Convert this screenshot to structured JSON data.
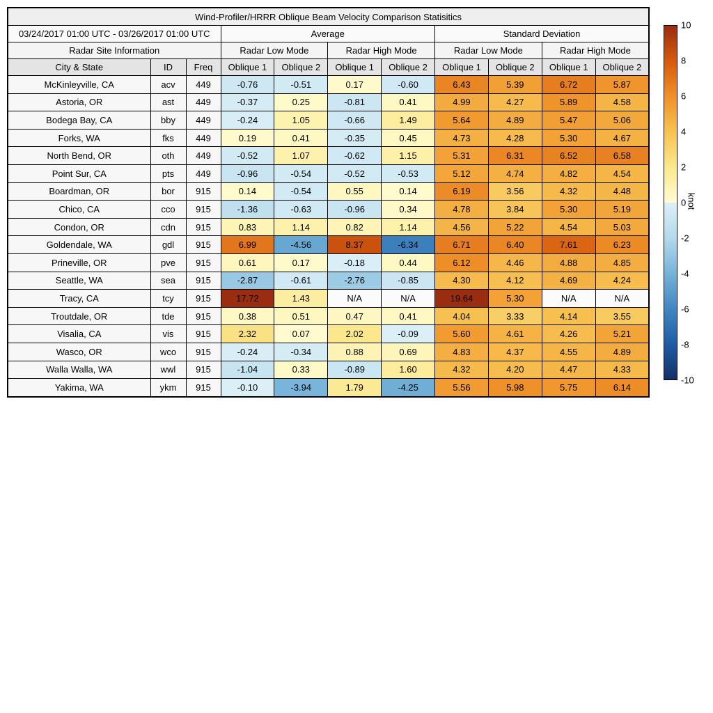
{
  "title": "Wind-Profiler/HRRR Oblique Beam Velocity Comparison Statisitics",
  "table": {
    "date_range": "03/24/2017 01:00 UTC - 03/26/2017 01:00 UTC",
    "average_label": "Average",
    "std_label": "Standard Deviation",
    "site_info_label": "Radar Site Information",
    "mode_labels": [
      "Radar Low Mode",
      "Radar High Mode",
      "Radar Low Mode",
      "Radar High Mode"
    ],
    "column_labels": [
      "City & State",
      "ID",
      "Freq",
      "Oblique 1",
      "Oblique 2",
      "Oblique 1",
      "Oblique 2",
      "Oblique 1",
      "Oblique 2",
      "Oblique 1",
      "Oblique 2"
    ]
  },
  "colorbar": {
    "label": "knot",
    "min": -10,
    "max": 10,
    "ticks": [
      10,
      8,
      6,
      4,
      2,
      0,
      -2,
      -4,
      -6,
      -8,
      -10
    ],
    "negative_stops": [
      [
        -10,
        "#123068"
      ],
      [
        -8,
        "#1e5ca4"
      ],
      [
        -6,
        "#4187c1"
      ],
      [
        -4,
        "#77b3d9"
      ],
      [
        -2,
        "#b3d9ec"
      ],
      [
        0,
        "#ddf0f7"
      ]
    ],
    "positive_stops": [
      [
        0,
        "#fffcd1"
      ],
      [
        2,
        "#fbe88e"
      ],
      [
        4,
        "#f7c252"
      ],
      [
        6,
        "#ef9129"
      ],
      [
        8,
        "#d55a0e"
      ],
      [
        10,
        "#9a2d0f"
      ]
    ],
    "na_color": "#fbfbfb"
  },
  "chart_data": {
    "type": "heatmap",
    "title": "Wind-Profiler/HRRR Oblique Beam Velocity Comparison Statisitics",
    "subtitle": "03/24/2017 01:00 UTC - 03/26/2017 01:00 UTC",
    "unit": "knot",
    "color_range": [
      -10,
      10
    ],
    "column_groups": [
      "Average / Radar Low Mode",
      "Average / Radar High Mode",
      "Standard Deviation / Radar Low Mode",
      "Standard Deviation / Radar High Mode"
    ],
    "value_columns": [
      "Oblique 1",
      "Oblique 2",
      "Oblique 1",
      "Oblique 2",
      "Oblique 1",
      "Oblique 2",
      "Oblique 1",
      "Oblique 2"
    ],
    "rows": [
      {
        "city": "McKinleyville, CA",
        "id": "acv",
        "freq": "449",
        "values": [
          "-0.76",
          "-0.51",
          "0.17",
          "-0.60",
          "6.43",
          "5.39",
          "6.72",
          "5.87"
        ]
      },
      {
        "city": "Astoria, OR",
        "id": "ast",
        "freq": "449",
        "values": [
          "-0.37",
          "0.25",
          "-0.81",
          "0.41",
          "4.99",
          "4.27",
          "5.89",
          "4.58"
        ]
      },
      {
        "city": "Bodega Bay, CA",
        "id": "bby",
        "freq": "449",
        "values": [
          "-0.24",
          "1.05",
          "-0.66",
          "1.49",
          "5.64",
          "4.89",
          "5.47",
          "5.06"
        ]
      },
      {
        "city": "Forks, WA",
        "id": "fks",
        "freq": "449",
        "values": [
          "0.19",
          "0.41",
          "-0.35",
          "0.45",
          "4.73",
          "4.28",
          "5.30",
          "4.67"
        ]
      },
      {
        "city": "North Bend, OR",
        "id": "oth",
        "freq": "449",
        "values": [
          "-0.52",
          "1.07",
          "-0.62",
          "1.15",
          "5.31",
          "6.31",
          "6.52",
          "6.58"
        ]
      },
      {
        "city": "Point Sur, CA",
        "id": "pts",
        "freq": "449",
        "values": [
          "-0.96",
          "-0.54",
          "-0.52",
          "-0.53",
          "5.12",
          "4.74",
          "4.82",
          "4.54"
        ]
      },
      {
        "city": "Boardman, OR",
        "id": "bor",
        "freq": "915",
        "values": [
          "0.14",
          "-0.54",
          "0.55",
          "0.14",
          "6.19",
          "3.56",
          "4.32",
          "4.48"
        ]
      },
      {
        "city": "Chico, CA",
        "id": "cco",
        "freq": "915",
        "values": [
          "-1.36",
          "-0.63",
          "-0.96",
          "0.34",
          "4.78",
          "3.84",
          "5.30",
          "5.19"
        ]
      },
      {
        "city": "Condon, OR",
        "id": "cdn",
        "freq": "915",
        "values": [
          "0.83",
          "1.14",
          "0.82",
          "1.14",
          "4.56",
          "5.22",
          "4.54",
          "5.03"
        ]
      },
      {
        "city": "Goldendale, WA",
        "id": "gdl",
        "freq": "915",
        "values": [
          "6.99",
          "-4.56",
          "8.37",
          "-6.34",
          "6.71",
          "6.40",
          "7.61",
          "6.23"
        ]
      },
      {
        "city": "Prineville, OR",
        "id": "pve",
        "freq": "915",
        "values": [
          "0.61",
          "0.17",
          "-0.18",
          "0.44",
          "6.12",
          "4.46",
          "4.88",
          "4.85"
        ]
      },
      {
        "city": "Seattle, WA",
        "id": "sea",
        "freq": "915",
        "values": [
          "-2.87",
          "-0.61",
          "-2.76",
          "-0.85",
          "4.30",
          "4.12",
          "4.69",
          "4.24"
        ]
      },
      {
        "city": "Tracy, CA",
        "id": "tcy",
        "freq": "915",
        "values": [
          "17.72",
          "1.43",
          "N/A",
          "N/A",
          "19.64",
          "5.30",
          "N/A",
          "N/A"
        ]
      },
      {
        "city": "Troutdale, OR",
        "id": "tde",
        "freq": "915",
        "values": [
          "0.38",
          "0.51",
          "0.47",
          "0.41",
          "4.04",
          "3.33",
          "4.14",
          "3.55"
        ]
      },
      {
        "city": "Visalia, CA",
        "id": "vis",
        "freq": "915",
        "values": [
          "2.32",
          "0.07",
          "2.02",
          "-0.09",
          "5.60",
          "4.61",
          "4.26",
          "5.21"
        ]
      },
      {
        "city": "Wasco, OR",
        "id": "wco",
        "freq": "915",
        "values": [
          "-0.24",
          "-0.34",
          "0.88",
          "0.69",
          "4.83",
          "4.37",
          "4.55",
          "4.89"
        ]
      },
      {
        "city": "Walla Walla, WA",
        "id": "wwl",
        "freq": "915",
        "values": [
          "-1.04",
          "0.33",
          "-0.89",
          "1.60",
          "4.32",
          "4.20",
          "4.47",
          "4.33"
        ]
      },
      {
        "city": "Yakima, WA",
        "id": "ykm",
        "freq": "915",
        "values": [
          "-0.10",
          "-3.94",
          "1.79",
          "-4.25",
          "5.56",
          "5.98",
          "5.75",
          "6.14"
        ]
      }
    ],
    "colorbar": {
      "label": "knot",
      "ticks": [
        10,
        8,
        6,
        4,
        2,
        0,
        -2,
        -4,
        -6,
        -8,
        -10
      ],
      "range": [
        -10,
        10
      ]
    }
  }
}
